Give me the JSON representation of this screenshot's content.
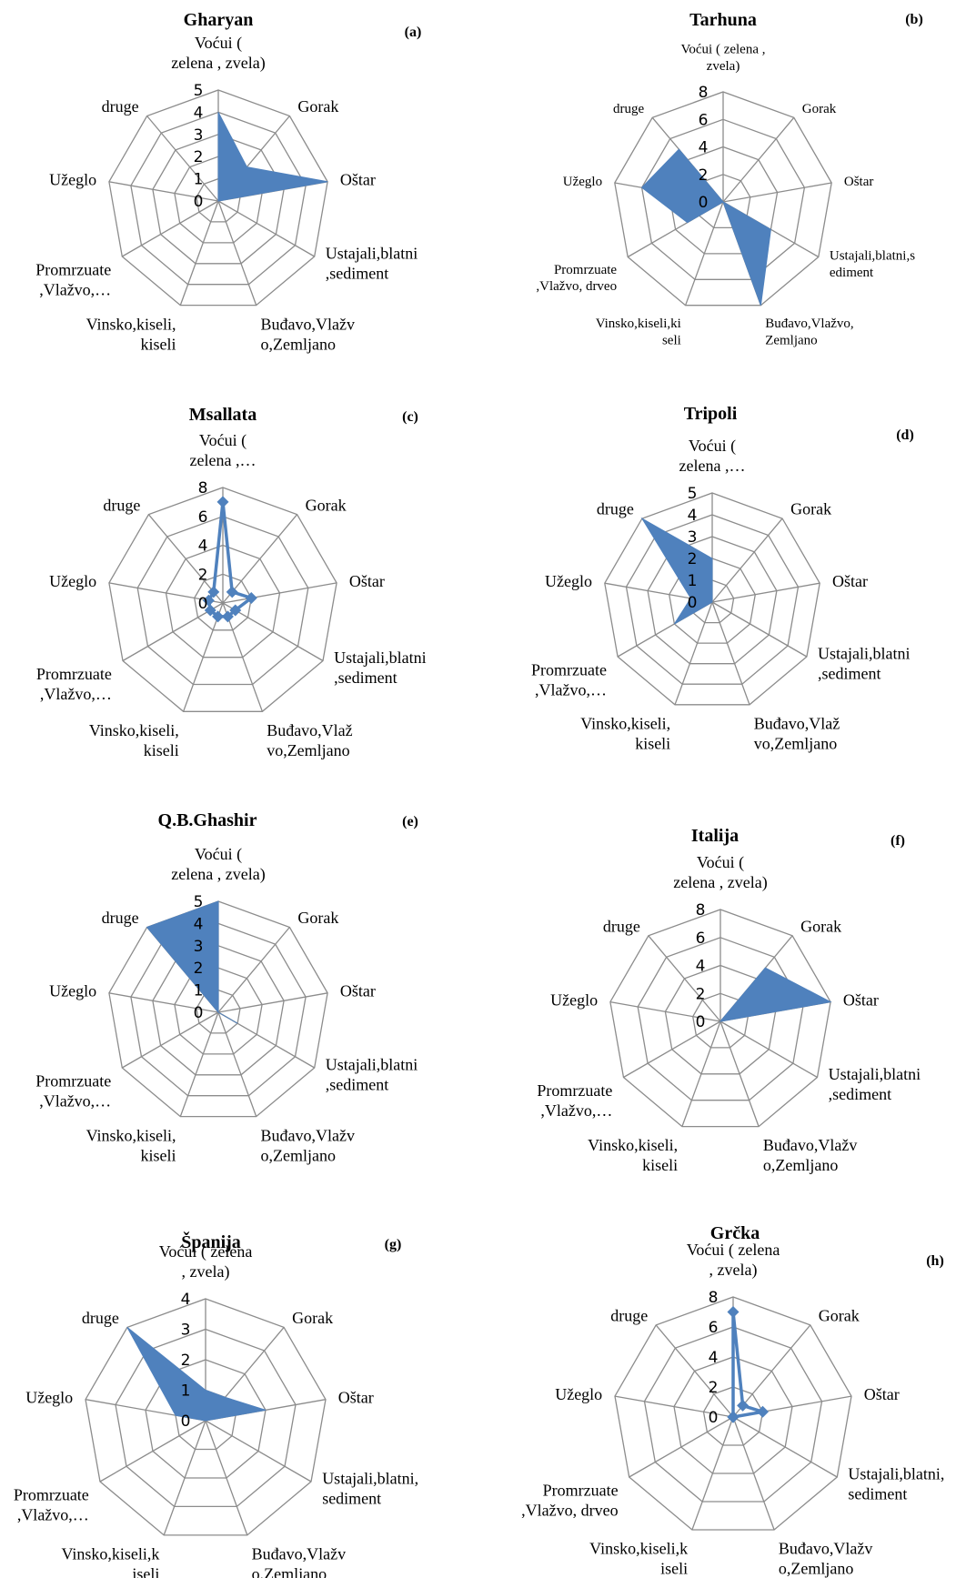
{
  "chart_data": [
    {
      "type": "radar",
      "title": "Gharyan",
      "panel": "(a)",
      "axes": [
        "Voćui ( zelena , zvela)",
        "Gorak",
        "Oštar",
        "Ustajali,blatni ,sediment",
        "Buđavo,Vlažv o,Zemljano",
        "Vinsko,kiseli, kiseli",
        "Promrzuate ,Vlažvo,…",
        "Užeglo",
        "druge"
      ],
      "axis_label_lines": [
        [
          "Voćui (",
          "zelena , zvela)"
        ],
        [
          "Gorak"
        ],
        [
          "Oštar"
        ],
        [
          "Ustajali,blatni",
          ",sediment"
        ],
        [
          "Buđavo,Vlažv",
          "o,Zemljano"
        ],
        [
          "Vinsko,kiseli,",
          "kiseli"
        ],
        [
          "Promrzuate",
          ",Vlažvo,…"
        ],
        [
          "Užeglo"
        ],
        [
          "druge"
        ]
      ],
      "ticks": [
        0,
        1,
        2,
        3,
        4,
        5
      ],
      "rmax": 5,
      "style": "area",
      "values": [
        4,
        2,
        5,
        0,
        0,
        0,
        0,
        0,
        0
      ]
    },
    {
      "type": "radar",
      "title": "Tarhuna",
      "panel": "(b)",
      "axes": [
        "Voćui ( zelena , zvela)",
        "Gorak",
        "Oštar",
        "Ustajali,blatni,s ediment",
        "Buđavo,Vlažvo, Zemljano",
        "Vinsko,kiseli,ki seli",
        "Promrzuate ,Vlažvo, drveo",
        "Užeglo",
        "druge"
      ],
      "axis_label_lines": [
        [
          "Voćui ( zelena ,",
          "zvela)"
        ],
        [
          "Gorak"
        ],
        [
          "Oštar"
        ],
        [
          "Ustajali,blatni,s",
          "ediment"
        ],
        [
          "Buđavo,Vlažvo,",
          "Zemljano"
        ],
        [
          "Vinsko,kiseli,ki",
          "seli"
        ],
        [
          "Promrzuate",
          ",Vlažvo, drveo"
        ],
        [
          "Užeglo"
        ],
        [
          "druge"
        ]
      ],
      "ticks": [
        0,
        2,
        4,
        6,
        8
      ],
      "rmax": 8,
      "style": "area",
      "values": [
        0,
        0,
        0,
        4,
        8,
        0,
        3,
        6,
        5
      ]
    },
    {
      "type": "radar",
      "title": "Msallata",
      "panel": "(c)",
      "axes": [
        "Voćui ( zelena ,…",
        "Gorak",
        "Oštar",
        "Ustajali,blatni ,sediment",
        "Buđavo,Vlaž vo,Zemljano",
        "Vinsko,kiseli, kiseli",
        "Promrzuate ,Vlažvo,…",
        "Užeglo",
        "druge"
      ],
      "axis_label_lines": [
        [
          "Voćui (",
          "zelena ,…"
        ],
        [
          "Gorak"
        ],
        [
          "Oštar"
        ],
        [
          "Ustajali,blatni",
          ",sediment"
        ],
        [
          "Buđavo,Vlaž",
          "vo,Zemljano"
        ],
        [
          "Vinsko,kiseli,",
          "kiseli"
        ],
        [
          "Promrzuate",
          ",Vlažvo,…"
        ],
        [
          "Užeglo"
        ],
        [
          "druge"
        ]
      ],
      "ticks": [
        0,
        2,
        4,
        6,
        8
      ],
      "rmax": 8,
      "style": "line",
      "values": [
        7,
        1,
        2,
        1,
        1,
        1,
        1,
        1,
        1
      ]
    },
    {
      "type": "radar",
      "title": "Tripoli",
      "panel": "(d)",
      "axes": [
        "Voćui ( zelena ,…",
        "Gorak",
        "Oštar",
        "Ustajali,blatni ,sediment",
        "Buđavo,Vlaž vo,Zemljano",
        "Vinsko,kiseli, kiseli",
        "Promrzuate ,Vlažvo,…",
        "Užeglo",
        "druge"
      ],
      "axis_label_lines": [
        [
          "Voćui (",
          "zelena ,…"
        ],
        [
          "Gorak"
        ],
        [
          "Oštar"
        ],
        [
          "Ustajali,blatni",
          ",sediment"
        ],
        [
          "Buđavo,Vlaž",
          "vo,Zemljano"
        ],
        [
          "Vinsko,kiseli,",
          "kiseli"
        ],
        [
          "Promrzuate",
          ",Vlažvo,…"
        ],
        [
          "Užeglo"
        ],
        [
          "druge"
        ]
      ],
      "ticks": [
        0,
        1,
        2,
        3,
        4,
        5
      ],
      "rmax": 5,
      "style": "area",
      "values": [
        2,
        0,
        0,
        0,
        0,
        0,
        2,
        1,
        5
      ]
    },
    {
      "type": "radar",
      "title": "Q.B.Ghashir",
      "panel": "(e)",
      "axes": [
        "Voćui ( zelena , zvela)",
        "Gorak",
        "Oštar",
        "Ustajali,blatni ,sediment",
        "Buđavo,Vlažv o,Zemljano",
        "Vinsko,kiseli, kiseli",
        "Promrzuate ,Vlažvo,…",
        "Užeglo",
        "druge"
      ],
      "axis_label_lines": [
        [
          "Voćui (",
          "zelena , zvela)"
        ],
        [
          "Gorak"
        ],
        [
          "Oštar"
        ],
        [
          "Ustajali,blatni",
          ",sediment"
        ],
        [
          "Buđavo,Vlažv",
          "o,Zemljano"
        ],
        [
          "Vinsko,kiseli,",
          "kiseli"
        ],
        [
          "Promrzuate",
          ",Vlažvo,…"
        ],
        [
          "Užeglo"
        ],
        [
          "druge"
        ]
      ],
      "ticks": [
        0,
        1,
        2,
        3,
        4,
        5
      ],
      "rmax": 5,
      "style": "area",
      "values": [
        5,
        0,
        0,
        1,
        0,
        0,
        0,
        0,
        5
      ]
    },
    {
      "type": "radar",
      "title": "Italija",
      "panel": "(f)",
      "axes": [
        "Voćui ( zelena , zvela)",
        "Gorak",
        "Oštar",
        "Ustajali,blatni ,sediment",
        "Buđavo,Vlažv o,Zemljano",
        "Vinsko,kiseli, kiseli",
        "Promrzuate ,Vlažvo,…",
        "Užeglo",
        "druge"
      ],
      "axis_label_lines": [
        [
          "Voćui (",
          "zelena , zvela)"
        ],
        [
          "Gorak"
        ],
        [
          "Oštar"
        ],
        [
          "Ustajali,blatni",
          ",sediment"
        ],
        [
          "Buđavo,Vlažv",
          "o,Zemljano"
        ],
        [
          "Vinsko,kiseli,",
          "kiseli"
        ],
        [
          "Promrzuate",
          ",Vlažvo,…"
        ],
        [
          "Užeglo"
        ],
        [
          "druge"
        ]
      ],
      "ticks": [
        0,
        2,
        4,
        6,
        8
      ],
      "rmax": 8,
      "style": "area",
      "values": [
        0,
        5,
        8,
        0,
        0,
        0,
        0,
        0,
        0
      ]
    },
    {
      "type": "radar",
      "title": "Španija",
      "panel": "(g)",
      "axes": [
        "Voćui ( zelena , zvela)",
        "Gorak",
        "Oštar",
        "Ustajali,blatni, sediment",
        "Buđavo,Vlažv o,Zemljano",
        "Vinsko,kiseli,k iseli",
        "Promrzuate ,Vlažvo,…",
        "Užeglo",
        "druge"
      ],
      "axis_label_lines": [
        [
          "Voćui ( zelena",
          ", zvela)"
        ],
        [
          "Gorak"
        ],
        [
          "Oštar"
        ],
        [
          "Ustajali,blatni,",
          "sediment"
        ],
        [
          "Buđavo,Vlažv",
          "o,Zemljano"
        ],
        [
          "Vinsko,kiseli,k",
          "iseli"
        ],
        [
          "Promrzuate",
          ",Vlažvo,…"
        ],
        [
          "Užeglo"
        ],
        [
          "druge"
        ]
      ],
      "ticks": [
        0,
        1,
        2,
        3,
        4
      ],
      "rmax": 4,
      "style": "area",
      "values": [
        1,
        1,
        2,
        0,
        0,
        0,
        0,
        1,
        4
      ]
    },
    {
      "type": "radar",
      "title": "Grčka",
      "panel": "(h)",
      "axes": [
        "Voćui ( zelena , zvela)",
        "Gorak",
        "Oštar",
        "Ustajali,blatni, sediment",
        "Buđavo,Vlažv o,Zemljano",
        "Vinsko,kiseli,k iseli",
        "Promrzuate ,Vlažvo, drveo",
        "Užeglo",
        "druge"
      ],
      "axis_label_lines": [
        [
          "Voćui ( zelena",
          ", zvela)"
        ],
        [
          "Gorak"
        ],
        [
          "Oštar"
        ],
        [
          "Ustajali,blatni,",
          "sediment"
        ],
        [
          "Buđavo,Vlažv",
          "o,Zemljano"
        ],
        [
          "Vinsko,kiseli,k",
          "iseli"
        ],
        [
          "Promrzuate",
          ",Vlažvo, drveo"
        ],
        [
          "Užeglo"
        ],
        [
          "druge"
        ]
      ],
      "ticks": [
        0,
        2,
        4,
        6,
        8
      ],
      "rmax": 8,
      "style": "line",
      "values": [
        7,
        1,
        2,
        0,
        0,
        0,
        0,
        0,
        0
      ]
    }
  ],
  "colors": {
    "series": "#4f81bd",
    "grid": "#8c8c8c"
  }
}
